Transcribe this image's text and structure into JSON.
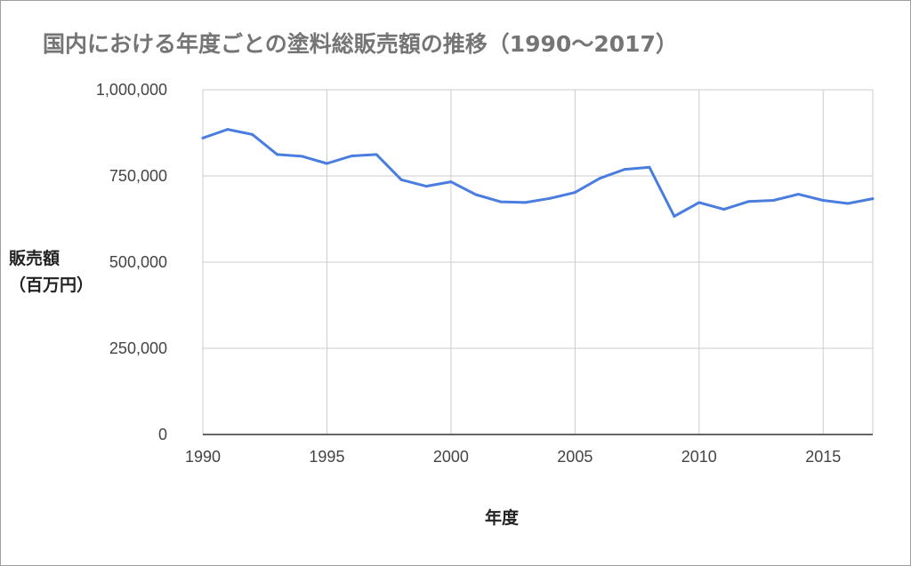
{
  "chart_data": {
    "type": "line",
    "title": "国内における年度ごとの塗料総販売額の推移（1990～2017）",
    "ylabel_line1": "販売額",
    "ylabel_line2": "（百万円）",
    "xlabel": "年度",
    "xlim": [
      1990,
      2017
    ],
    "ylim": [
      0,
      1000000
    ],
    "x_ticks": [
      1990,
      1995,
      2000,
      2005,
      2010,
      2015
    ],
    "y_ticks": [
      0,
      250000,
      500000,
      750000,
      1000000
    ],
    "y_tick_labels": [
      "0",
      "250,000",
      "500,000",
      "750,000",
      "1,000,000"
    ],
    "grid": true,
    "series": [
      {
        "color": "#4a7de0",
        "x": [
          1990,
          1991,
          1992,
          1993,
          1994,
          1995,
          1996,
          1997,
          1998,
          1999,
          2000,
          2001,
          2002,
          2003,
          2004,
          2005,
          2006,
          2007,
          2008,
          2009,
          2010,
          2011,
          2012,
          2013,
          2014,
          2015,
          2016,
          2017
        ],
        "values": [
          860000,
          885000,
          870000,
          812000,
          807000,
          786000,
          808000,
          812000,
          739000,
          720000,
          733000,
          696000,
          675000,
          673000,
          685000,
          702000,
          743000,
          769000,
          775000,
          633000,
          673000,
          653000,
          676000,
          679000,
          697000,
          679000,
          670000,
          684000
        ]
      }
    ]
  }
}
